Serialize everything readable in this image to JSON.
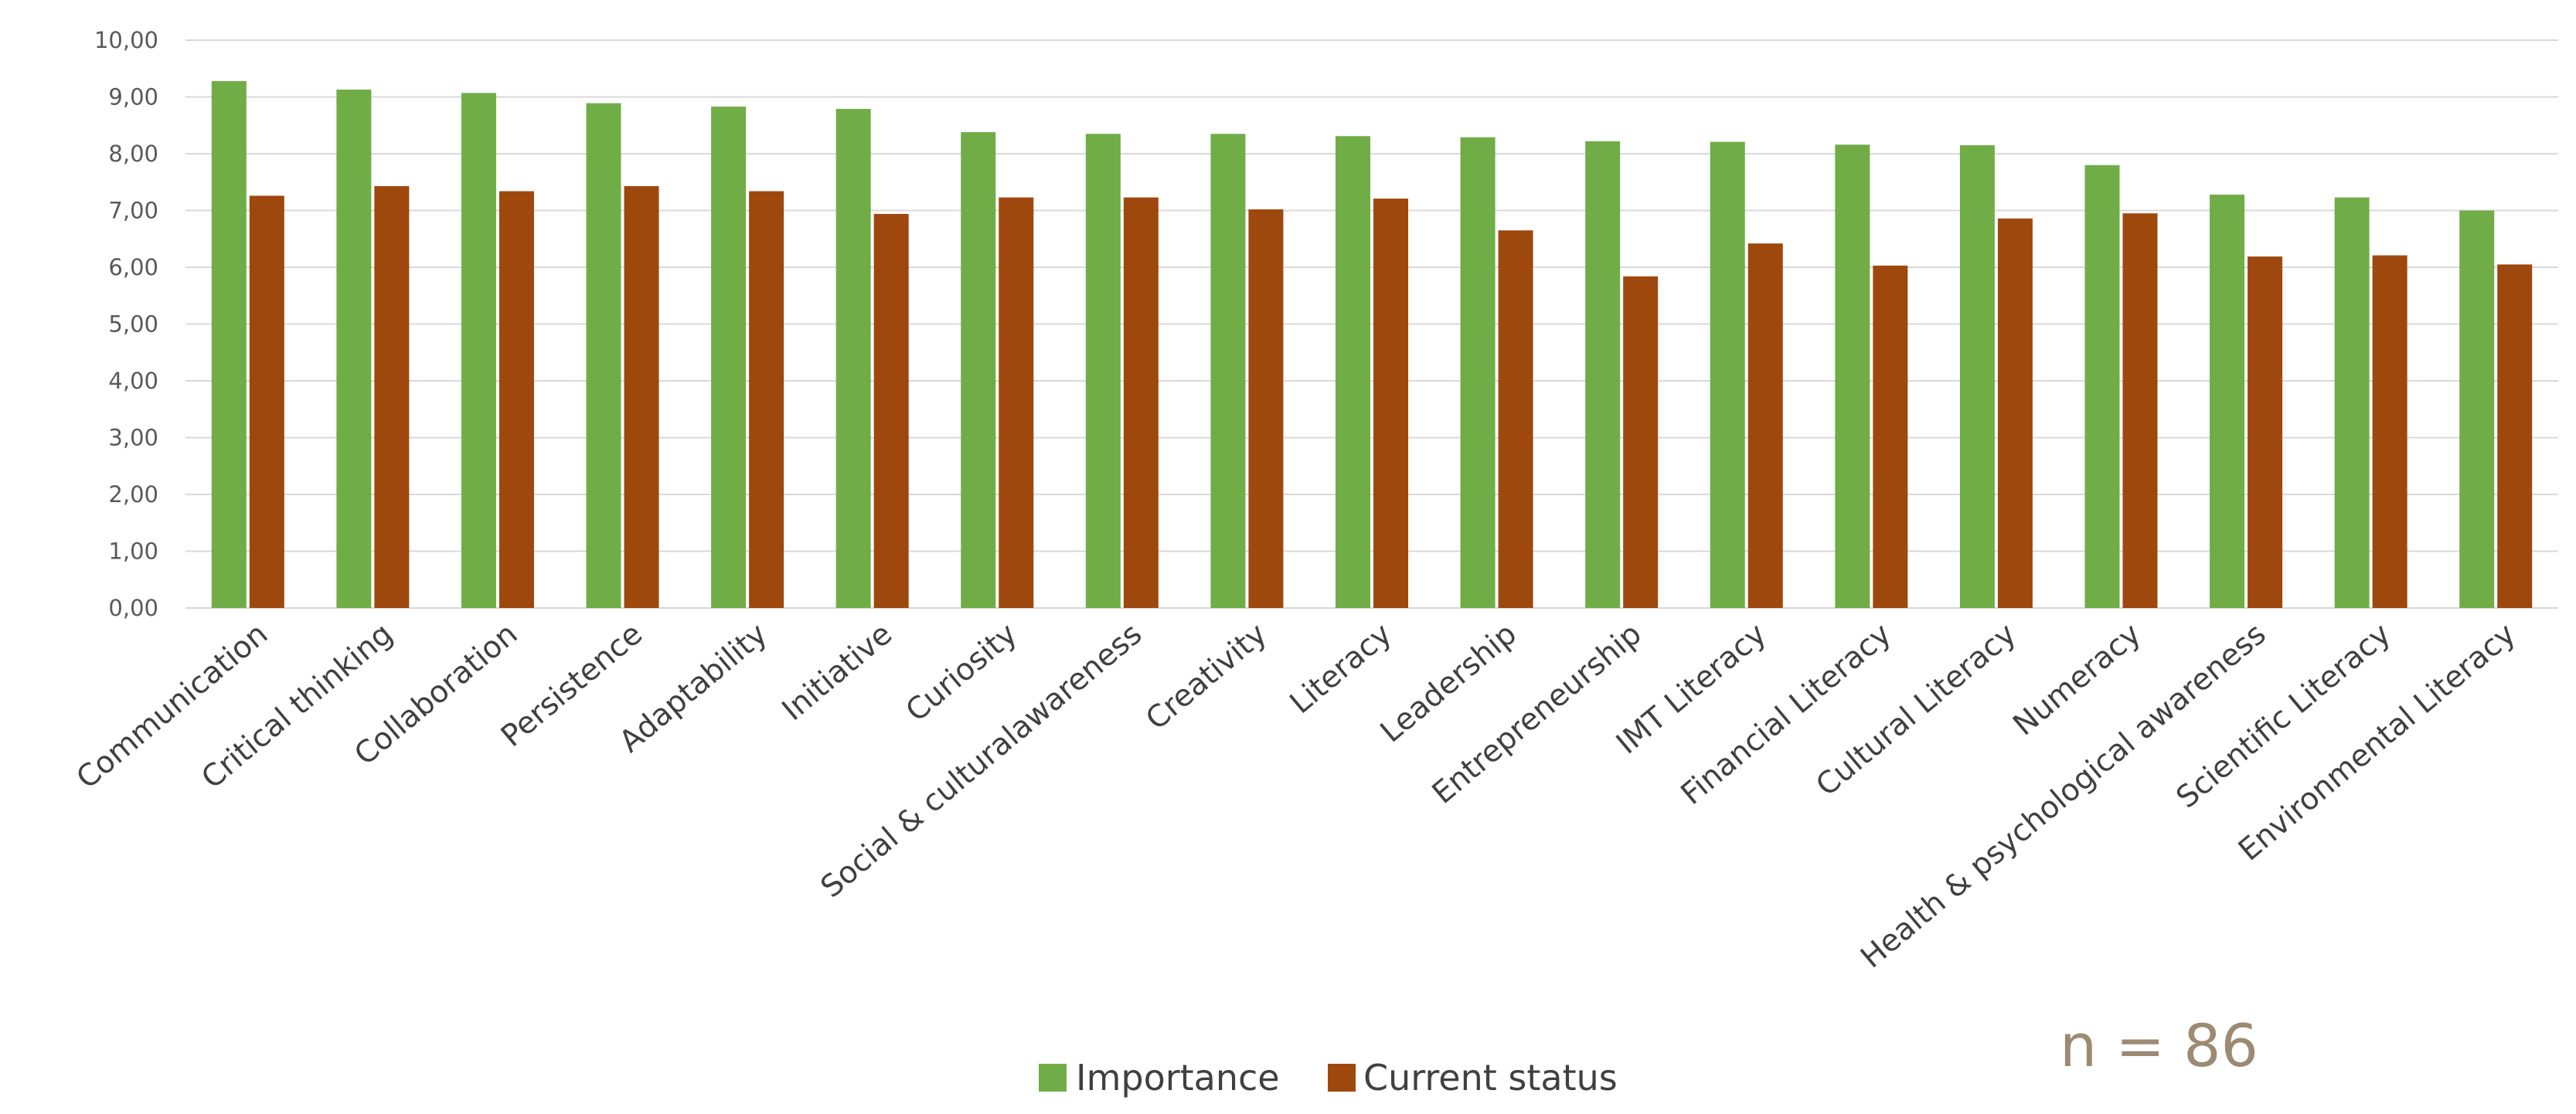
{
  "chart_data": {
    "type": "bar",
    "categories": [
      "Communication",
      "Critical thinking",
      "Collaboration",
      "Persistence",
      "Adaptability",
      "Initiative",
      "Curiosity",
      "Social & culturalawareness",
      "Creativity",
      "Literacy",
      "Leadership",
      "Entrepreneurship",
      "IMT Literacy",
      "Financial Literacy",
      "Cultural Literacy",
      "Numeracy",
      "Health & psychological awareness",
      "Scientific Literacy",
      "Environmental Literacy"
    ],
    "series": [
      {
        "name": "Importance",
        "color": "#70ad47",
        "values": [
          9.28,
          9.13,
          9.07,
          8.89,
          8.83,
          8.79,
          8.38,
          8.35,
          8.35,
          8.31,
          8.29,
          8.22,
          8.21,
          8.16,
          8.15,
          7.8,
          7.28,
          7.23,
          7.0
        ]
      },
      {
        "name": "Current status",
        "color": "#9e480e",
        "values": [
          7.26,
          7.43,
          7.34,
          7.43,
          7.34,
          6.94,
          7.23,
          7.23,
          7.02,
          7.21,
          6.65,
          5.84,
          6.42,
          6.03,
          6.86,
          6.95,
          6.19,
          6.21,
          6.05
        ]
      }
    ],
    "y_ticks": [
      "0,00",
      "1,00",
      "2,00",
      "3,00",
      "4,00",
      "5,00",
      "6,00",
      "7,00",
      "8,00",
      "9,00",
      "10,00"
    ],
    "ylim": [
      0,
      10
    ],
    "title": "",
    "xlabel": "",
    "ylabel": "",
    "grid": true,
    "legend_position": "bottom",
    "annotation": "n = 86"
  }
}
